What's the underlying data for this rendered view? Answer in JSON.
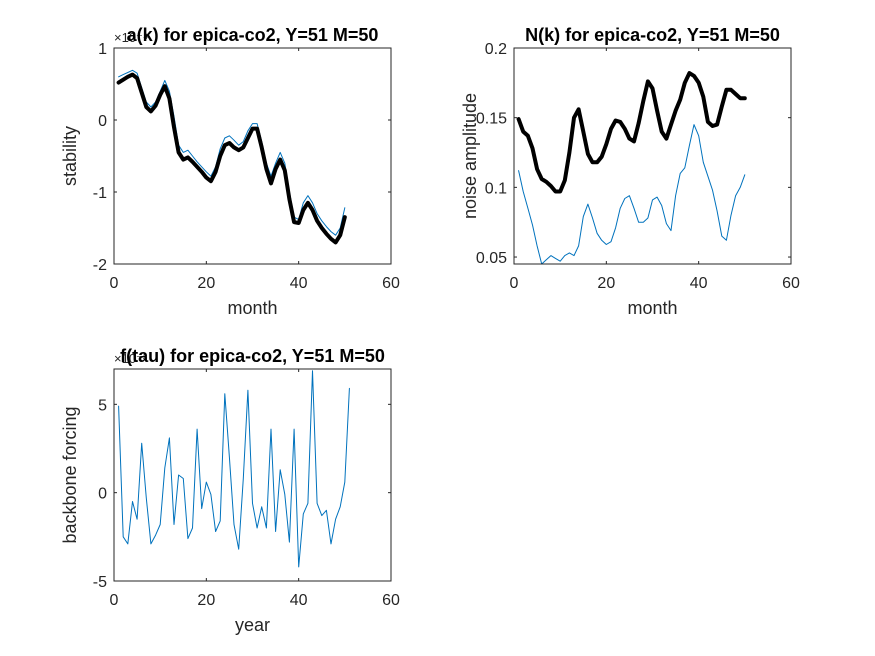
{
  "chart_data": [
    {
      "type": "line",
      "title": "a(k) for epica-co2, Y=51 M=50",
      "xlabel": "month",
      "ylabel": "stability",
      "exponent_label": "×10⁻⁴",
      "xlim": [
        0,
        60
      ],
      "ylim": [
        -2,
        1
      ],
      "xticks": [
        0,
        20,
        40,
        60
      ],
      "yticks": [
        -2,
        -1,
        0,
        1
      ],
      "xtick_labels": [
        "0",
        "20",
        "40",
        "60"
      ],
      "ytick_labels": [
        "-2",
        "-1",
        "0",
        "1"
      ],
      "series": [
        {
          "color": "#0072BD",
          "width": 1,
          "x": [
            1,
            2,
            3,
            4,
            5,
            6,
            7,
            8,
            9,
            10,
            11,
            12,
            13,
            14,
            15,
            16,
            17,
            18,
            19,
            20,
            21,
            22,
            23,
            24,
            25,
            26,
            27,
            28,
            29,
            30,
            31,
            32,
            33,
            34,
            35,
            36,
            37,
            38,
            39,
            40,
            41,
            42,
            43,
            44,
            45,
            46,
            47,
            48,
            49,
            50
          ],
          "values": [
            0.6,
            0.63,
            0.66,
            0.69,
            0.65,
            0.45,
            0.25,
            0.18,
            0.25,
            0.4,
            0.55,
            0.4,
            0.05,
            -0.35,
            -0.45,
            -0.42,
            -0.5,
            -0.58,
            -0.65,
            -0.72,
            -0.78,
            -0.65,
            -0.4,
            -0.25,
            -0.22,
            -0.28,
            -0.35,
            -0.3,
            -0.15,
            -0.05,
            -0.05,
            -0.3,
            -0.6,
            -0.78,
            -0.6,
            -0.45,
            -0.6,
            -1.0,
            -1.35,
            -1.38,
            -1.15,
            -1.05,
            -1.15,
            -1.3,
            -1.4,
            -1.48,
            -1.55,
            -1.6,
            -1.5,
            -1.22
          ]
        },
        {
          "color": "#000000",
          "width": 4,
          "x": [
            1,
            2,
            3,
            4,
            5,
            6,
            7,
            8,
            9,
            10,
            11,
            12,
            13,
            14,
            15,
            16,
            17,
            18,
            19,
            20,
            21,
            22,
            23,
            24,
            25,
            26,
            27,
            28,
            29,
            30,
            31,
            32,
            33,
            34,
            35,
            36,
            37,
            38,
            39,
            40,
            41,
            42,
            43,
            44,
            45,
            46,
            47,
            48,
            49,
            50
          ],
          "values": [
            0.52,
            0.56,
            0.6,
            0.63,
            0.58,
            0.38,
            0.18,
            0.12,
            0.2,
            0.35,
            0.47,
            0.3,
            -0.1,
            -0.45,
            -0.55,
            -0.52,
            -0.58,
            -0.65,
            -0.72,
            -0.8,
            -0.85,
            -0.72,
            -0.5,
            -0.35,
            -0.32,
            -0.38,
            -0.42,
            -0.38,
            -0.25,
            -0.12,
            -0.12,
            -0.38,
            -0.68,
            -0.88,
            -0.68,
            -0.55,
            -0.7,
            -1.1,
            -1.42,
            -1.43,
            -1.25,
            -1.15,
            -1.25,
            -1.4,
            -1.5,
            -1.58,
            -1.65,
            -1.7,
            -1.6,
            -1.35
          ]
        }
      ]
    },
    {
      "type": "line",
      "title": "N(k) for epica-co2, Y=51 M=50",
      "xlabel": "month",
      "ylabel": "noise amplitude",
      "xlim": [
        0,
        60
      ],
      "ylim": [
        0.045,
        0.2
      ],
      "xticks": [
        0,
        20,
        40,
        60
      ],
      "yticks": [
        0.05,
        0.1,
        0.15,
        0.2
      ],
      "xtick_labels": [
        "0",
        "20",
        "40",
        "60"
      ],
      "ytick_labels": [
        "0.05",
        "0.1",
        "0.15",
        "0.2"
      ],
      "series": [
        {
          "color": "#0072BD",
          "width": 1,
          "x": [
            1,
            2,
            3,
            4,
            5,
            6,
            7,
            8,
            9,
            10,
            11,
            12,
            13,
            14,
            15,
            16,
            17,
            18,
            19,
            20,
            21,
            22,
            23,
            24,
            25,
            26,
            27,
            28,
            29,
            30,
            31,
            32,
            33,
            34,
            35,
            36,
            37,
            38,
            39,
            40,
            41,
            42,
            43,
            44,
            45,
            46,
            47,
            48,
            49,
            50
          ],
          "values": [
            0.112,
            0.097,
            0.085,
            0.073,
            0.058,
            0.045,
            0.048,
            0.051,
            0.049,
            0.047,
            0.051,
            0.053,
            0.051,
            0.058,
            0.079,
            0.088,
            0.078,
            0.067,
            0.062,
            0.059,
            0.061,
            0.071,
            0.085,
            0.092,
            0.094,
            0.085,
            0.075,
            0.075,
            0.078,
            0.091,
            0.093,
            0.087,
            0.074,
            0.069,
            0.094,
            0.11,
            0.114,
            0.13,
            0.145,
            0.137,
            0.118,
            0.108,
            0.098,
            0.083,
            0.065,
            0.062,
            0.08,
            0.094,
            0.1,
            0.109
          ]
        },
        {
          "color": "#000000",
          "width": 4,
          "x": [
            1,
            2,
            3,
            4,
            5,
            6,
            7,
            8,
            9,
            10,
            11,
            12,
            13,
            14,
            15,
            16,
            17,
            18,
            19,
            20,
            21,
            22,
            23,
            24,
            25,
            26,
            27,
            28,
            29,
            30,
            31,
            32,
            33,
            34,
            35,
            36,
            37,
            38,
            39,
            40,
            41,
            42,
            43,
            44,
            45,
            46,
            47,
            48,
            49,
            50
          ],
          "values": [
            0.149,
            0.14,
            0.137,
            0.128,
            0.113,
            0.106,
            0.104,
            0.101,
            0.097,
            0.097,
            0.105,
            0.125,
            0.15,
            0.156,
            0.14,
            0.124,
            0.118,
            0.118,
            0.122,
            0.131,
            0.142,
            0.148,
            0.147,
            0.142,
            0.135,
            0.133,
            0.146,
            0.162,
            0.176,
            0.171,
            0.155,
            0.14,
            0.135,
            0.145,
            0.155,
            0.163,
            0.175,
            0.182,
            0.18,
            0.175,
            0.165,
            0.147,
            0.144,
            0.145,
            0.158,
            0.17,
            0.17,
            0.167,
            0.164,
            0.164
          ]
        }
      ]
    },
    {
      "type": "line",
      "title": "f(tau) for epica-co2, Y=51 M=50",
      "xlabel": "year",
      "ylabel": "backbone forcing",
      "exponent_label": "×10⁻³",
      "xlim": [
        0,
        60
      ],
      "ylim": [
        -5,
        7
      ],
      "xticks": [
        0,
        20,
        40,
        60
      ],
      "yticks": [
        -5,
        0,
        5
      ],
      "xtick_labels": [
        "0",
        "20",
        "40",
        "60"
      ],
      "ytick_labels": [
        "-5",
        "0",
        "5"
      ],
      "series": [
        {
          "color": "#0072BD",
          "width": 1,
          "x": [
            1,
            2,
            3,
            4,
            5,
            6,
            7,
            8,
            9,
            10,
            11,
            12,
            13,
            14,
            15,
            16,
            17,
            18,
            19,
            20,
            21,
            22,
            23,
            24,
            25,
            26,
            27,
            28,
            29,
            30,
            31,
            32,
            33,
            34,
            35,
            36,
            37,
            38,
            39,
            40,
            41,
            42,
            43,
            44,
            45,
            46,
            47,
            48,
            49,
            50,
            51
          ],
          "values": [
            4.9,
            -2.5,
            -2.9,
            -0.5,
            -1.5,
            2.8,
            -0.3,
            -2.9,
            -2.4,
            -1.8,
            1.4,
            3.1,
            -1.8,
            1.0,
            0.8,
            -2.6,
            -2.0,
            3.6,
            -0.9,
            0.6,
            -0.1,
            -2.2,
            -1.6,
            5.6,
            2.0,
            -1.8,
            -3.2,
            0.8,
            5.8,
            -0.6,
            -2.0,
            -0.8,
            -2.0,
            3.6,
            -2.2,
            1.3,
            -0.1,
            -2.8,
            3.6,
            -4.2,
            -1.2,
            -0.6,
            6.9,
            -0.6,
            -1.3,
            -1.0,
            -2.9,
            -1.5,
            -0.8,
            0.6,
            5.9
          ]
        }
      ]
    }
  ]
}
